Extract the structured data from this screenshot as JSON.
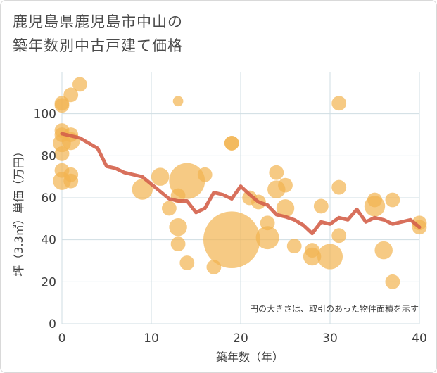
{
  "chart_data": {
    "type": "scatter",
    "title_lines": [
      "鹿児島県鹿児島市中山の",
      "築年数別中古戸建て価格"
    ],
    "xlabel": "築年数（年）",
    "ylabel": "坪（3.3㎡）単価（万円）",
    "note": "円の大きさは、取引のあった物件面積を示す",
    "xlim": [
      0,
      40
    ],
    "ylim": [
      0,
      120
    ],
    "x_ticks": [
      "0",
      "10",
      "20",
      "30",
      "40"
    ],
    "y_ticks": [
      "0",
      "20",
      "40",
      "60",
      "80",
      "100"
    ],
    "colors": {
      "bubble": "#f2b450",
      "trend": "#d4604a",
      "grid": "#cfdde3"
    },
    "bubbles": [
      {
        "x": 0,
        "y": 105,
        "size": 2
      },
      {
        "x": 0,
        "y": 104,
        "size": 2
      },
      {
        "x": 0,
        "y": 92,
        "size": 2
      },
      {
        "x": 0,
        "y": 90,
        "size": 2
      },
      {
        "x": 0,
        "y": 86,
        "size": 3
      },
      {
        "x": 0,
        "y": 81,
        "size": 2
      },
      {
        "x": 0,
        "y": 73,
        "size": 2
      },
      {
        "x": 0,
        "y": 68,
        "size": 3
      },
      {
        "x": 1,
        "y": 109,
        "size": 2
      },
      {
        "x": 1,
        "y": 90,
        "size": 2
      },
      {
        "x": 1,
        "y": 87,
        "size": 3
      },
      {
        "x": 1,
        "y": 71,
        "size": 2
      },
      {
        "x": 1,
        "y": 68,
        "size": 2
      },
      {
        "x": 2,
        "y": 114,
        "size": 2
      },
      {
        "x": 9,
        "y": 64,
        "size": 4
      },
      {
        "x": 11,
        "y": 70,
        "size": 3
      },
      {
        "x": 12,
        "y": 55,
        "size": 2
      },
      {
        "x": 13,
        "y": 106,
        "size": 1
      },
      {
        "x": 13,
        "y": 61,
        "size": 2
      },
      {
        "x": 13,
        "y": 46,
        "size": 3
      },
      {
        "x": 13,
        "y": 38,
        "size": 2
      },
      {
        "x": 14,
        "y": 68,
        "size": 12
      },
      {
        "x": 14,
        "y": 29,
        "size": 2
      },
      {
        "x": 16,
        "y": 71,
        "size": 2
      },
      {
        "x": 17,
        "y": 27,
        "size": 2
      },
      {
        "x": 19,
        "y": 86,
        "size": 2
      },
      {
        "x": 19,
        "y": 86,
        "size": 2
      },
      {
        "x": 19,
        "y": 40,
        "size": 30
      },
      {
        "x": 21,
        "y": 60,
        "size": 2
      },
      {
        "x": 22,
        "y": 58,
        "size": 2
      },
      {
        "x": 23,
        "y": 48,
        "size": 2
      },
      {
        "x": 23,
        "y": 41,
        "size": 5
      },
      {
        "x": 24,
        "y": 72,
        "size": 2
      },
      {
        "x": 24,
        "y": 64,
        "size": 3
      },
      {
        "x": 25,
        "y": 66,
        "size": 2
      },
      {
        "x": 25,
        "y": 55,
        "size": 3
      },
      {
        "x": 26,
        "y": 37,
        "size": 2
      },
      {
        "x": 28,
        "y": 35,
        "size": 2
      },
      {
        "x": 28,
        "y": 32,
        "size": 3
      },
      {
        "x": 29,
        "y": 56,
        "size": 2
      },
      {
        "x": 30,
        "y": 32,
        "size": 6
      },
      {
        "x": 31,
        "y": 105,
        "size": 2
      },
      {
        "x": 31,
        "y": 65,
        "size": 2
      },
      {
        "x": 31,
        "y": 42,
        "size": 2
      },
      {
        "x": 35,
        "y": 59,
        "size": 2
      },
      {
        "x": 35,
        "y": 56,
        "size": 4
      },
      {
        "x": 36,
        "y": 35,
        "size": 3
      },
      {
        "x": 37,
        "y": 59,
        "size": 2
      },
      {
        "x": 37,
        "y": 20,
        "size": 2
      },
      {
        "x": 40,
        "y": 48,
        "size": 2
      },
      {
        "x": 40,
        "y": 46,
        "size": 2
      }
    ],
    "trend": {
      "x": [
        0,
        1,
        2,
        3,
        4,
        5,
        6,
        7,
        8,
        9,
        10,
        11,
        12,
        13,
        14,
        15,
        16,
        17,
        18,
        19,
        20,
        21,
        22,
        23,
        24,
        25,
        26,
        27,
        28,
        29,
        30,
        31,
        32,
        33,
        34,
        35,
        36,
        37,
        38,
        39,
        40
      ],
      "y": [
        90.5,
        89.5,
        88.5,
        86,
        83.5,
        75,
        74,
        72,
        71,
        70,
        66.5,
        63,
        59.5,
        58.5,
        58.5,
        53,
        55,
        62.5,
        61.5,
        59.5,
        65.5,
        61.5,
        58,
        56.5,
        52,
        51,
        49.5,
        47,
        43,
        48.5,
        47.5,
        50.5,
        49.5,
        54.5,
        48.5,
        50.5,
        49.5,
        47.5,
        48.5,
        49.5,
        46
      ]
    }
  }
}
